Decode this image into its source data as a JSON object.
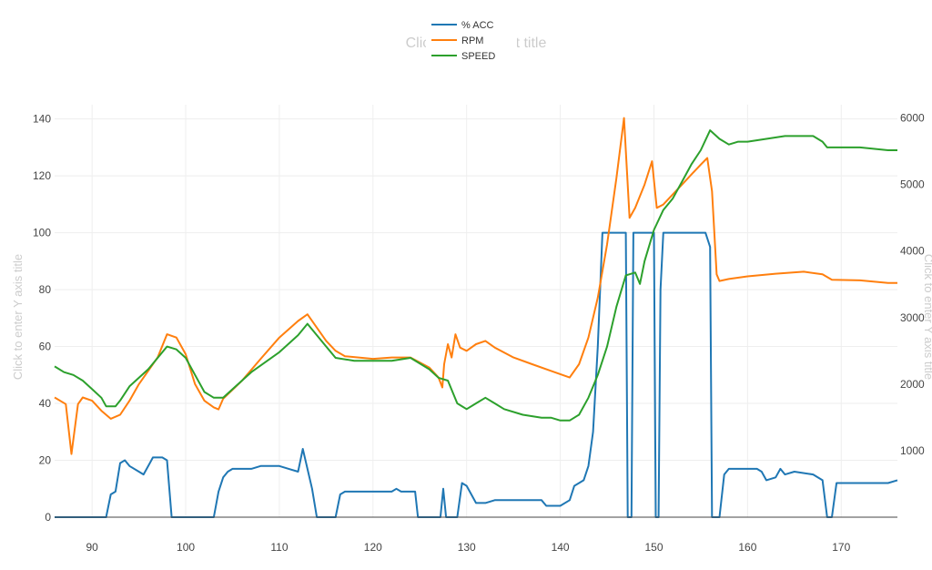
{
  "chart_data": {
    "type": "line",
    "title_placeholder": "Click to enter Plot title",
    "y_axis_title_placeholder": "Click to enter Y axis title",
    "y2_axis_title_placeholder": "Click to enter Y axis title",
    "xlim": [
      86,
      176
    ],
    "ylim": [
      0,
      145
    ],
    "y2lim": [
      0,
      6200
    ],
    "x_ticks": [
      90,
      100,
      110,
      120,
      130,
      140,
      150,
      160,
      170
    ],
    "y_ticks": [
      0,
      20,
      40,
      60,
      80,
      100,
      120,
      140
    ],
    "y2_ticks": [
      1000,
      2000,
      3000,
      4000,
      5000,
      6000
    ],
    "grid": true,
    "legend_position": "top-center",
    "colors": {
      "acc": "#1f77b4",
      "rpm": "#ff7f0e",
      "speed": "#2ca02c"
    },
    "series": [
      {
        "name": "% ACC",
        "axis": "y",
        "color": "#1f77b4",
        "points": [
          [
            86,
            0
          ],
          [
            91.5,
            0
          ],
          [
            92,
            8
          ],
          [
            92.5,
            9
          ],
          [
            93,
            19
          ],
          [
            93.5,
            20
          ],
          [
            94,
            18
          ],
          [
            95,
            16
          ],
          [
            95.5,
            15
          ],
          [
            96,
            18
          ],
          [
            96.5,
            21
          ],
          [
            97.5,
            21
          ],
          [
            98,
            20
          ],
          [
            98.5,
            0
          ],
          [
            103,
            0
          ],
          [
            103.5,
            9
          ],
          [
            104,
            14
          ],
          [
            104.5,
            16
          ],
          [
            105,
            17
          ],
          [
            107,
            17
          ],
          [
            108,
            18
          ],
          [
            110,
            18
          ],
          [
            111,
            17
          ],
          [
            112,
            16
          ],
          [
            112.5,
            24
          ],
          [
            113,
            17
          ],
          [
            113.5,
            10
          ],
          [
            114,
            0
          ],
          [
            116,
            0
          ],
          [
            116.5,
            8
          ],
          [
            117,
            9
          ],
          [
            120,
            9
          ],
          [
            122,
            9
          ],
          [
            122.5,
            10
          ],
          [
            123,
            9
          ],
          [
            124.5,
            9
          ],
          [
            124.8,
            0
          ],
          [
            127.2,
            0
          ],
          [
            127.5,
            10
          ],
          [
            127.8,
            0
          ],
          [
            129,
            0
          ],
          [
            129.5,
            12
          ],
          [
            130,
            11
          ],
          [
            131,
            5
          ],
          [
            132,
            5
          ],
          [
            133,
            6
          ],
          [
            135,
            6
          ],
          [
            138,
            6
          ],
          [
            138.5,
            4
          ],
          [
            140,
            4
          ],
          [
            141,
            6
          ],
          [
            141.5,
            11
          ],
          [
            142,
            12
          ],
          [
            142.5,
            13
          ],
          [
            143,
            18
          ],
          [
            143.5,
            30
          ],
          [
            144,
            60
          ],
          [
            144.5,
            100
          ],
          [
            147,
            100
          ],
          [
            147.2,
            0
          ],
          [
            147.6,
            0
          ],
          [
            147.8,
            100
          ],
          [
            150,
            100
          ],
          [
            150.2,
            0
          ],
          [
            150.5,
            0
          ],
          [
            150.7,
            80
          ],
          [
            151,
            100
          ],
          [
            155.5,
            100
          ],
          [
            156,
            95
          ],
          [
            156.2,
            0
          ],
          [
            157,
            0
          ],
          [
            157.5,
            15
          ],
          [
            158,
            17
          ],
          [
            161,
            17
          ],
          [
            161.5,
            16
          ],
          [
            162,
            13
          ],
          [
            163,
            14
          ],
          [
            163.5,
            17
          ],
          [
            164,
            15
          ],
          [
            165,
            16
          ],
          [
            167,
            15
          ],
          [
            168,
            13
          ],
          [
            168.5,
            0
          ],
          [
            169,
            0
          ],
          [
            169.5,
            12
          ],
          [
            170,
            12
          ],
          [
            175,
            12
          ],
          [
            176,
            13
          ]
        ]
      },
      {
        "name": "RPM",
        "axis": "y2",
        "color": "#ff7f0e",
        "points": [
          [
            86,
            1800
          ],
          [
            87.2,
            1700
          ],
          [
            87.8,
            950
          ],
          [
            88.5,
            1700
          ],
          [
            89,
            1800
          ],
          [
            90,
            1750
          ],
          [
            91,
            1600
          ],
          [
            92,
            1480
          ],
          [
            93,
            1540
          ],
          [
            94,
            1750
          ],
          [
            95,
            2000
          ],
          [
            97,
            2400
          ],
          [
            98,
            2750
          ],
          [
            99,
            2700
          ],
          [
            100,
            2450
          ],
          [
            101,
            2000
          ],
          [
            102,
            1750
          ],
          [
            103,
            1650
          ],
          [
            103.5,
            1620
          ],
          [
            104,
            1780
          ],
          [
            106,
            2050
          ],
          [
            108,
            2380
          ],
          [
            110,
            2700
          ],
          [
            112,
            2950
          ],
          [
            113,
            3050
          ],
          [
            114,
            2850
          ],
          [
            115,
            2650
          ],
          [
            116,
            2500
          ],
          [
            117,
            2420
          ],
          [
            120,
            2380
          ],
          [
            122,
            2400
          ],
          [
            124,
            2400
          ],
          [
            126,
            2250
          ],
          [
            127,
            2100
          ],
          [
            127.4,
            1950
          ],
          [
            127.6,
            2300
          ],
          [
            128,
            2600
          ],
          [
            128.4,
            2400
          ],
          [
            128.8,
            2750
          ],
          [
            129.3,
            2550
          ],
          [
            130,
            2500
          ],
          [
            131,
            2600
          ],
          [
            132,
            2650
          ],
          [
            133,
            2550
          ],
          [
            135,
            2400
          ],
          [
            137,
            2300
          ],
          [
            139,
            2200
          ],
          [
            141,
            2100
          ],
          [
            142,
            2300
          ],
          [
            143,
            2700
          ],
          [
            144,
            3300
          ],
          [
            145,
            4100
          ],
          [
            146,
            5100
          ],
          [
            146.8,
            6000
          ],
          [
            147.4,
            4500
          ],
          [
            148,
            4650
          ],
          [
            149,
            5000
          ],
          [
            149.8,
            5350
          ],
          [
            150.3,
            4650
          ],
          [
            151,
            4700
          ],
          [
            152,
            4850
          ],
          [
            153,
            5000
          ],
          [
            154,
            5150
          ],
          [
            155,
            5300
          ],
          [
            155.7,
            5400
          ],
          [
            156.2,
            4900
          ],
          [
            156.7,
            3650
          ],
          [
            157,
            3550
          ],
          [
            158,
            3580
          ],
          [
            160,
            3620
          ],
          [
            163,
            3660
          ],
          [
            166,
            3690
          ],
          [
            168,
            3650
          ],
          [
            169,
            3570
          ],
          [
            172,
            3560
          ],
          [
            175,
            3520
          ],
          [
            176,
            3520
          ]
        ]
      },
      {
        "name": "SPEED",
        "axis": "y",
        "color": "#2ca02c",
        "points": [
          [
            86,
            53
          ],
          [
            87,
            51
          ],
          [
            88,
            50
          ],
          [
            89,
            48
          ],
          [
            90,
            45
          ],
          [
            91,
            42
          ],
          [
            91.5,
            39
          ],
          [
            92.5,
            39
          ],
          [
            93,
            41
          ],
          [
            94,
            46
          ],
          [
            96,
            52
          ],
          [
            98,
            60
          ],
          [
            99,
            59
          ],
          [
            100,
            56
          ],
          [
            101,
            50
          ],
          [
            102,
            44
          ],
          [
            103,
            42
          ],
          [
            104,
            42
          ],
          [
            105,
            45
          ],
          [
            107,
            51
          ],
          [
            110,
            58
          ],
          [
            112,
            64
          ],
          [
            113,
            68
          ],
          [
            114,
            64
          ],
          [
            115,
            60
          ],
          [
            116,
            56
          ],
          [
            118,
            55
          ],
          [
            120,
            55
          ],
          [
            122,
            55
          ],
          [
            124,
            56
          ],
          [
            126,
            52
          ],
          [
            127,
            49
          ],
          [
            128,
            48
          ],
          [
            129,
            40
          ],
          [
            130,
            38
          ],
          [
            131,
            40
          ],
          [
            132,
            42
          ],
          [
            133,
            40
          ],
          [
            134,
            38
          ],
          [
            136,
            36
          ],
          [
            138,
            35
          ],
          [
            139,
            35
          ],
          [
            140,
            34
          ],
          [
            141,
            34
          ],
          [
            142,
            36
          ],
          [
            143,
            42
          ],
          [
            144,
            50
          ],
          [
            145,
            60
          ],
          [
            146,
            74
          ],
          [
            147,
            85
          ],
          [
            148,
            86
          ],
          [
            148.5,
            82
          ],
          [
            149,
            90
          ],
          [
            150,
            101
          ],
          [
            151,
            108
          ],
          [
            152,
            112
          ],
          [
            153,
            118
          ],
          [
            154,
            124
          ],
          [
            155,
            129
          ],
          [
            156,
            136
          ],
          [
            157,
            133
          ],
          [
            158,
            131
          ],
          [
            159,
            132
          ],
          [
            160,
            132
          ],
          [
            162,
            133
          ],
          [
            164,
            134
          ],
          [
            167,
            134
          ],
          [
            168,
            132
          ],
          [
            168.5,
            130
          ],
          [
            172,
            130
          ],
          [
            175,
            129
          ],
          [
            176,
            129
          ]
        ]
      }
    ]
  }
}
